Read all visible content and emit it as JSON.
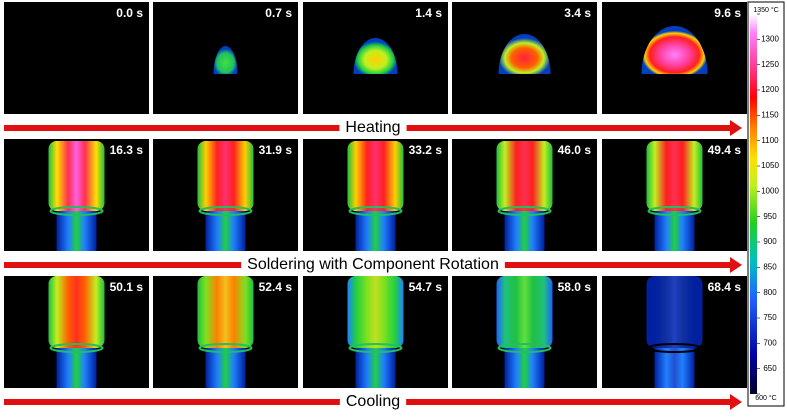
{
  "rows": [
    {
      "label": "Heating",
      "times": [
        "0.0 s",
        "0.7 s",
        "1.4 s",
        "3.4 s",
        "9.6 s"
      ]
    },
    {
      "label": "Soldering with Component Rotation",
      "times": [
        "16.3 s",
        "31.9 s",
        "33.2 s",
        "46.0 s",
        "49.4 s"
      ]
    },
    {
      "label": "Cooling",
      "times": [
        "50.1 s",
        "52.4 s",
        "54.7 s",
        "58.0 s",
        "68.4 s"
      ]
    }
  ],
  "colorbar": {
    "lim": [
      600,
      1350
    ],
    "ticks": [
      {
        "value": 600,
        "label": "600 °C"
      },
      650,
      700,
      750,
      800,
      850,
      900,
      950,
      1000,
      1050,
      1100,
      1150,
      1200,
      1250,
      1300,
      {
        "value": 1350,
        "label": "1350 °C"
      }
    ]
  }
}
